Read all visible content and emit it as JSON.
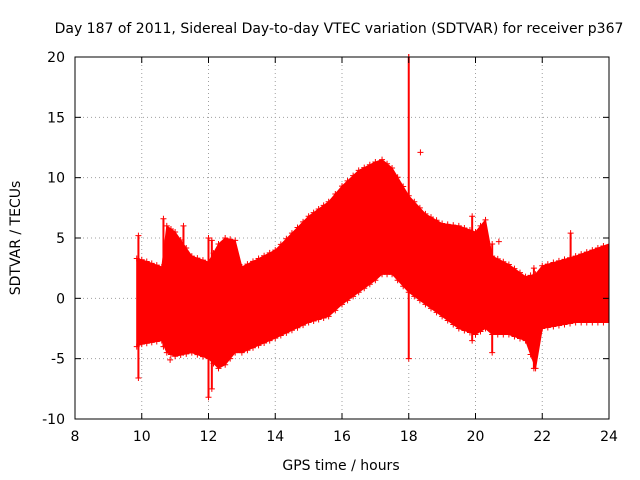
{
  "chart_data": {
    "type": "scatter",
    "title": "Day 187 of 2011, Sidereal Day-to-day VTEC variation (SDTVAR) for receiver p367",
    "xlabel": "GPS time / hours",
    "ylabel": "SDTVAR / TECUs",
    "xlim": [
      8,
      24
    ],
    "ylim": [
      -10,
      20
    ],
    "xticks": [
      8,
      10,
      12,
      14,
      16,
      18,
      20,
      22,
      24
    ],
    "yticks": [
      -10,
      -5,
      0,
      5,
      10,
      15,
      20
    ],
    "grid": true,
    "marker": "+",
    "color": "#ff0000",
    "series": [
      {
        "name": "SDTVAR",
        "envelope": {
          "x": [
            9.85,
            10.0,
            10.6,
            10.75,
            11.0,
            11.5,
            12.0,
            12.3,
            12.5,
            12.8,
            13.0,
            14.0,
            15.0,
            15.6,
            16.0,
            16.5,
            17.0,
            17.2,
            17.5,
            18.0,
            18.5,
            19.0,
            19.5,
            20.0,
            20.3,
            20.5,
            21.0,
            21.5,
            21.8,
            22.0,
            23.0,
            24.0
          ],
          "upper": [
            3.3,
            3.2,
            2.6,
            6.0,
            5.5,
            3.5,
            3.0,
            4.5,
            5.0,
            4.8,
            2.6,
            4.0,
            6.8,
            8.0,
            9.3,
            10.6,
            11.3,
            11.5,
            10.8,
            8.5,
            7.0,
            6.2,
            6.0,
            5.5,
            6.5,
            3.5,
            2.8,
            1.8,
            2.0,
            2.7,
            3.5,
            4.5
          ],
          "lower": [
            -4.0,
            -3.8,
            -3.5,
            -4.5,
            -4.8,
            -4.5,
            -5.0,
            -5.8,
            -5.5,
            -4.5,
            -4.5,
            -3.3,
            -2.0,
            -1.5,
            -0.5,
            0.5,
            1.5,
            2.0,
            2.0,
            0.5,
            -0.5,
            -1.5,
            -2.5,
            -3.0,
            -2.5,
            -3.0,
            -3.0,
            -3.5,
            -5.8,
            -2.5,
            -2.0,
            -2.0
          ]
        },
        "spikes": [
          {
            "x": 9.9,
            "low": -6.6,
            "high": 5.2
          },
          {
            "x": 10.65,
            "low": -4.0,
            "high": 6.6
          },
          {
            "x": 11.25,
            "low": -4.5,
            "high": 6.0
          },
          {
            "x": 12.0,
            "low": -8.2,
            "high": 5.0
          },
          {
            "x": 12.1,
            "low": -7.5,
            "high": 4.8
          },
          {
            "x": 18.0,
            "low": -5.0,
            "high": 20.0
          },
          {
            "x": 19.9,
            "low": -3.5,
            "high": 6.8
          },
          {
            "x": 20.5,
            "low": -4.5,
            "high": 4.5
          },
          {
            "x": 21.75,
            "low": -5.8,
            "high": 2.5
          },
          {
            "x": 22.85,
            "low": -1.0,
            "high": 5.4
          }
        ],
        "outliers": [
          {
            "x": 18.35,
            "y": 12.1
          },
          {
            "x": 20.7,
            "y": 4.7
          },
          {
            "x": 18.0,
            "y": 20.0
          },
          {
            "x": 10.85,
            "y": -5.1
          }
        ]
      }
    ]
  }
}
